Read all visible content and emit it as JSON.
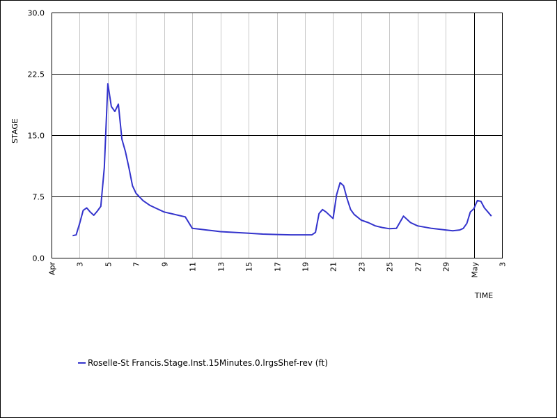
{
  "chart_data": {
    "type": "line",
    "xlabel": "TIME",
    "ylabel": "STAGE",
    "ylim": [
      0,
      30
    ],
    "yticks": [
      {
        "value": 0,
        "label": "0.0"
      },
      {
        "value": 7.5,
        "label": "7.5"
      },
      {
        "value": 15,
        "label": "15.0"
      },
      {
        "value": 22.5,
        "label": "22.5"
      },
      {
        "value": 30,
        "label": "30.0"
      }
    ],
    "xlim": [
      "2024-04-01",
      "2024-05-03"
    ],
    "xticks": [
      {
        "date": "2024-04-01",
        "label": "Apr"
      },
      {
        "date": "2024-04-03",
        "label": "3"
      },
      {
        "date": "2024-04-05",
        "label": "5"
      },
      {
        "date": "2024-04-07",
        "label": "7"
      },
      {
        "date": "2024-04-09",
        "label": "9"
      },
      {
        "date": "2024-04-11",
        "label": "11"
      },
      {
        "date": "2024-04-13",
        "label": "13"
      },
      {
        "date": "2024-04-15",
        "label": "15"
      },
      {
        "date": "2024-04-17",
        "label": "17"
      },
      {
        "date": "2024-04-19",
        "label": "19"
      },
      {
        "date": "2024-04-21",
        "label": "21"
      },
      {
        "date": "2024-04-23",
        "label": "23"
      },
      {
        "date": "2024-04-25",
        "label": "25"
      },
      {
        "date": "2024-04-27",
        "label": "27"
      },
      {
        "date": "2024-04-29",
        "label": "29"
      },
      {
        "date": "2024-05-01",
        "label": "May"
      },
      {
        "date": "2024-05-03",
        "label": "3"
      }
    ],
    "grid": true,
    "legend_position": "bottom-left",
    "series": [
      {
        "name": "Roselle-St Francis.Stage.Inst.15Minutes.0.lrgsShef-rev (ft)",
        "color": "#3333cc",
        "points": [
          [
            "2024-04-02 12:00",
            2.7
          ],
          [
            "2024-04-02 18:00",
            2.8
          ],
          [
            "2024-04-03 00:00",
            4.2
          ],
          [
            "2024-04-03 06:00",
            5.8
          ],
          [
            "2024-04-03 12:00",
            6.1
          ],
          [
            "2024-04-03 18:00",
            5.6
          ],
          [
            "2024-04-04 00:00",
            5.2
          ],
          [
            "2024-04-04 06:00",
            5.7
          ],
          [
            "2024-04-04 12:00",
            6.3
          ],
          [
            "2024-04-04 18:00",
            11.0
          ],
          [
            "2024-04-05 00:00",
            21.3
          ],
          [
            "2024-04-05 06:00",
            18.5
          ],
          [
            "2024-04-05 12:00",
            17.9
          ],
          [
            "2024-04-05 18:00",
            18.8
          ],
          [
            "2024-04-06 00:00",
            14.5
          ],
          [
            "2024-04-06 06:00",
            13.0
          ],
          [
            "2024-04-06 12:00",
            11.0
          ],
          [
            "2024-04-06 18:00",
            8.8
          ],
          [
            "2024-04-07 00:00",
            7.9
          ],
          [
            "2024-04-07 12:00",
            7.0
          ],
          [
            "2024-04-08 00:00",
            6.4
          ],
          [
            "2024-04-08 12:00",
            6.0
          ],
          [
            "2024-04-09 00:00",
            5.6
          ],
          [
            "2024-04-09 12:00",
            5.4
          ],
          [
            "2024-04-10 00:00",
            5.2
          ],
          [
            "2024-04-10 12:00",
            5.0
          ],
          [
            "2024-04-11 00:00",
            3.6
          ],
          [
            "2024-04-11 12:00",
            3.5
          ],
          [
            "2024-04-12 00:00",
            3.4
          ],
          [
            "2024-04-12 12:00",
            3.3
          ],
          [
            "2024-04-13 00:00",
            3.2
          ],
          [
            "2024-04-14 00:00",
            3.1
          ],
          [
            "2024-04-15 00:00",
            3.0
          ],
          [
            "2024-04-16 00:00",
            2.9
          ],
          [
            "2024-04-17 00:00",
            2.85
          ],
          [
            "2024-04-18 00:00",
            2.8
          ],
          [
            "2024-04-19 00:00",
            2.8
          ],
          [
            "2024-04-19 12:00",
            2.8
          ],
          [
            "2024-04-19 18:00",
            3.1
          ],
          [
            "2024-04-20 00:00",
            5.4
          ],
          [
            "2024-04-20 06:00",
            5.9
          ],
          [
            "2024-04-20 12:00",
            5.6
          ],
          [
            "2024-04-21 00:00",
            4.8
          ],
          [
            "2024-04-21 06:00",
            7.7
          ],
          [
            "2024-04-21 12:00",
            9.2
          ],
          [
            "2024-04-21 18:00",
            8.8
          ],
          [
            "2024-04-22 00:00",
            7.2
          ],
          [
            "2024-04-22 06:00",
            5.9
          ],
          [
            "2024-04-22 12:00",
            5.3
          ],
          [
            "2024-04-23 00:00",
            4.6
          ],
          [
            "2024-04-23 12:00",
            4.3
          ],
          [
            "2024-04-24 00:00",
            3.9
          ],
          [
            "2024-04-24 12:00",
            3.7
          ],
          [
            "2024-04-25 00:00",
            3.55
          ],
          [
            "2024-04-25 12:00",
            3.6
          ],
          [
            "2024-04-26 00:00",
            5.1
          ],
          [
            "2024-04-26 12:00",
            4.3
          ],
          [
            "2024-04-27 00:00",
            3.9
          ],
          [
            "2024-04-28 00:00",
            3.6
          ],
          [
            "2024-04-29 00:00",
            3.4
          ],
          [
            "2024-04-29 12:00",
            3.3
          ],
          [
            "2024-04-30 00:00",
            3.4
          ],
          [
            "2024-04-30 06:00",
            3.6
          ],
          [
            "2024-04-30 12:00",
            4.2
          ],
          [
            "2024-04-30 18:00",
            5.6
          ],
          [
            "2024-05-01 00:00",
            6.0
          ],
          [
            "2024-05-01 06:00",
            7.0
          ],
          [
            "2024-05-01 12:00",
            6.9
          ],
          [
            "2024-05-01 18:00",
            6.1
          ],
          [
            "2024-05-02 00:00",
            5.6
          ],
          [
            "2024-05-02 06:00",
            5.1
          ]
        ]
      }
    ]
  }
}
